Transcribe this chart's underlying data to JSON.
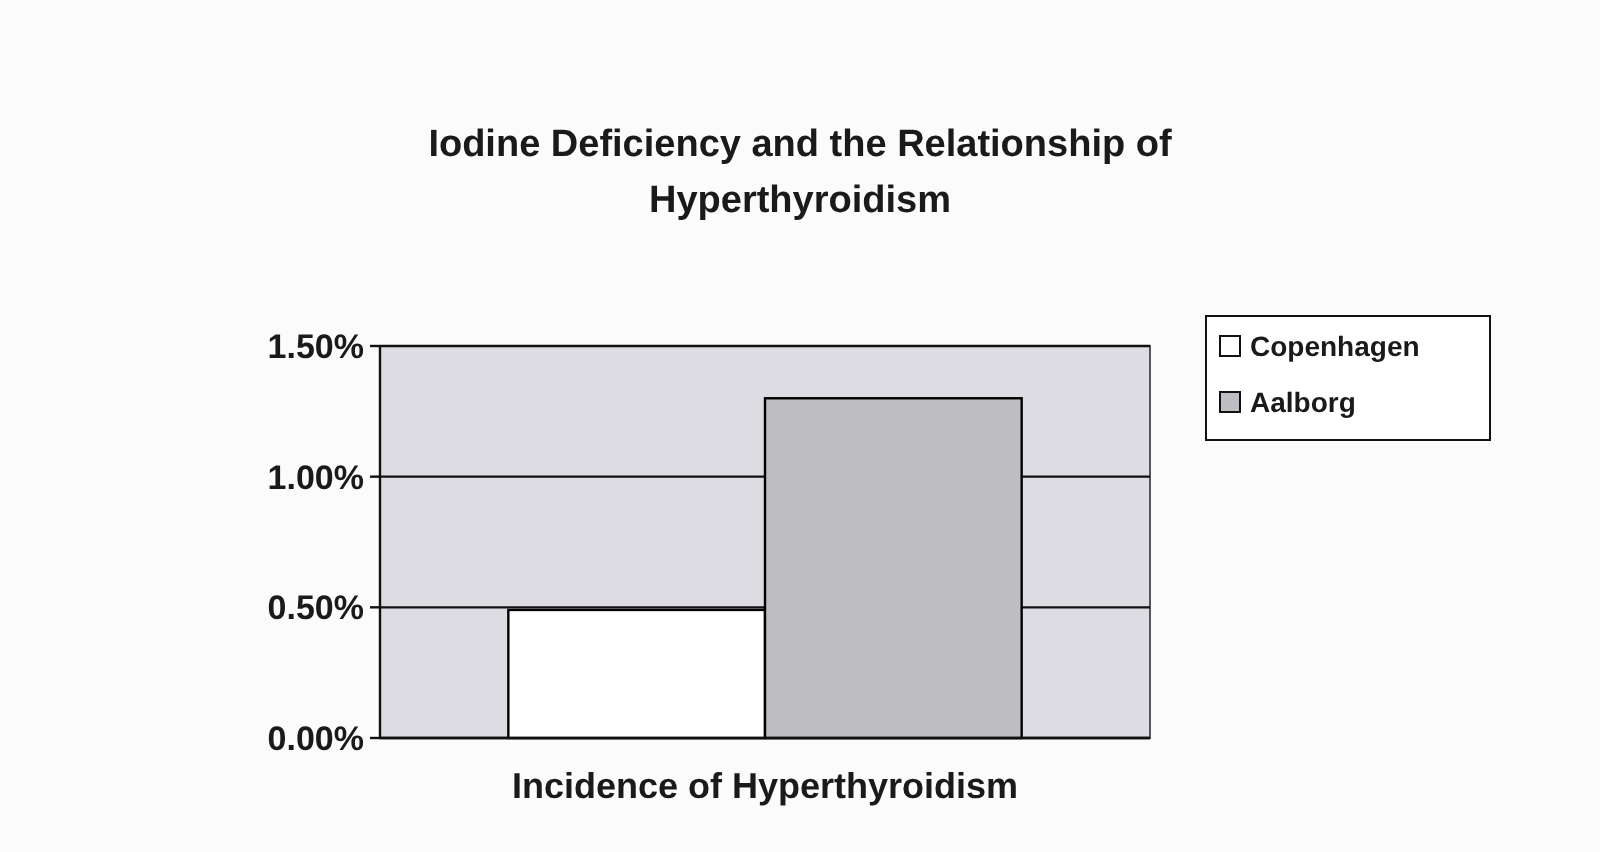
{
  "chart_data": {
    "type": "bar",
    "title": "Iodine Deficiency and the Relationship of Hyperthyroidism",
    "categories": [
      "Incidence of Hyperthyroidism"
    ],
    "series": [
      {
        "name": "Copenhagen",
        "color": "#ffffff",
        "values": [
          0.49
        ]
      },
      {
        "name": "Aalborg",
        "color": "#bdbdc2",
        "values": [
          1.3
        ]
      }
    ],
    "ylim": [
      0,
      1.5
    ],
    "yticks": [
      {
        "value": 0,
        "label": "0.00%"
      },
      {
        "value": 0.5,
        "label": "0.50%"
      },
      {
        "value": 1,
        "label": "1.00%"
      },
      {
        "value": 1.5,
        "label": "1.50%"
      }
    ],
    "grid": "y",
    "legend": "top right"
  }
}
